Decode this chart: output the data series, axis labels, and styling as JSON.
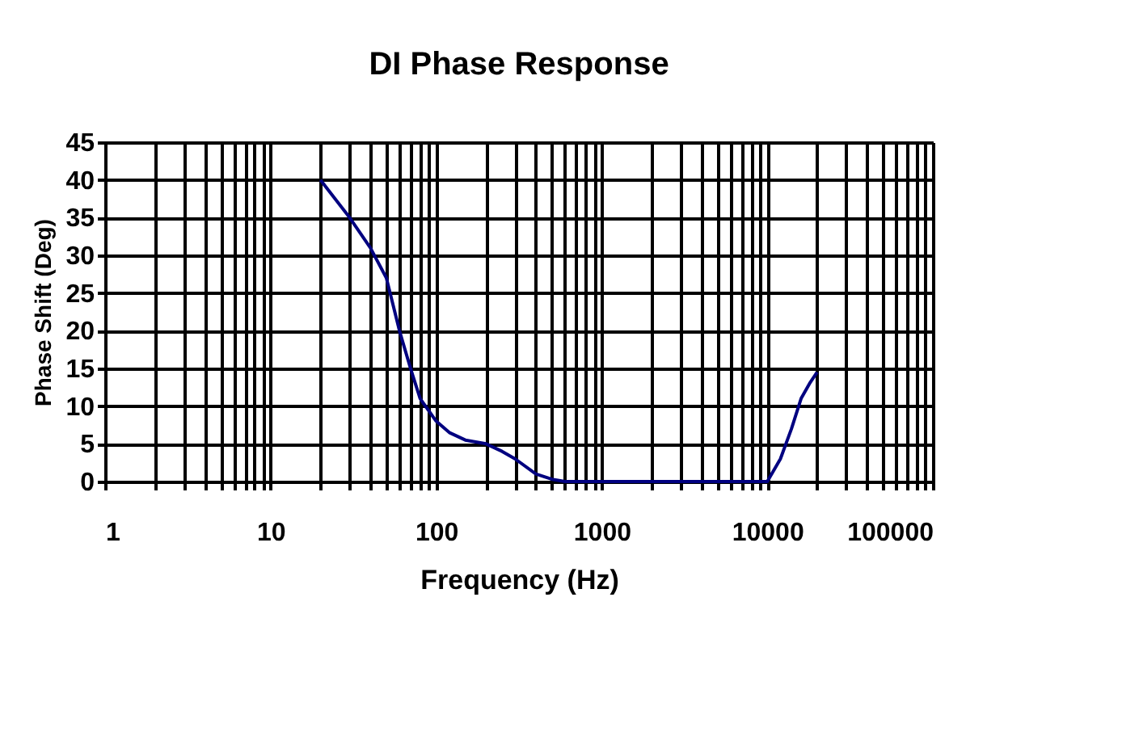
{
  "chart_data": {
    "type": "line",
    "title": "DI Phase Response",
    "xlabel": "Frequency (Hz)",
    "ylabel": "Phase Shift (Deg)",
    "log": "x",
    "grid": true,
    "marker": "none",
    "line_style": "solid",
    "x": [
      20,
      30,
      40,
      50,
      60,
      70,
      80,
      100,
      120,
      150,
      200,
      250,
      300,
      400,
      500,
      600,
      1000,
      10000,
      12000,
      14000,
      16000,
      18000,
      20000
    ],
    "series": [
      {
        "color": "#000080",
        "values": [
          40,
          35,
          31,
          27,
          20,
          15,
          11,
          8,
          6.5,
          5.5,
          5,
          4,
          3,
          1,
          0.3,
          0,
          0,
          0,
          3,
          7,
          11,
          13,
          14.5
        ]
      }
    ],
    "xlim": [
      1,
      100000
    ],
    "xticks": [
      1,
      {
        "value": 2,
        "label": null
      },
      {
        "value": 3,
        "label": null
      },
      {
        "value": 4,
        "label": null
      },
      {
        "value": 5,
        "label": null
      },
      {
        "value": 6,
        "label": null
      },
      {
        "value": 7,
        "label": null
      },
      {
        "value": 8,
        "label": null
      },
      {
        "value": 9,
        "label": null
      },
      10,
      {
        "value": 20,
        "label": null
      },
      {
        "value": 30,
        "label": null
      },
      {
        "value": 40,
        "label": null
      },
      {
        "value": 50,
        "label": null
      },
      {
        "value": 60,
        "label": null
      },
      {
        "value": 70,
        "label": null
      },
      {
        "value": 80,
        "label": null
      },
      {
        "value": 90,
        "label": null
      },
      100,
      {
        "value": 200,
        "label": null
      },
      {
        "value": 300,
        "label": null
      },
      {
        "value": 400,
        "label": null
      },
      {
        "value": 500,
        "label": null
      },
      {
        "value": 600,
        "label": null
      },
      {
        "value": 700,
        "label": null
      },
      {
        "value": 800,
        "label": null
      },
      {
        "value": 900,
        "label": null
      },
      1000,
      {
        "value": 2000,
        "label": null
      },
      {
        "value": 3000,
        "label": null
      },
      {
        "value": 4000,
        "label": null
      },
      {
        "value": 5000,
        "label": null
      },
      {
        "value": 6000,
        "label": null
      },
      {
        "value": 7000,
        "label": null
      },
      {
        "value": 8000,
        "label": null
      },
      {
        "value": 9000,
        "label": null
      },
      10000,
      {
        "value": 20000,
        "label": null
      },
      {
        "value": 30000,
        "label": null
      },
      {
        "value": 40000,
        "label": null
      },
      {
        "value": 50000,
        "label": null
      },
      {
        "value": 60000,
        "label": null
      },
      {
        "value": 70000,
        "label": null
      },
      {
        "value": 80000,
        "label": null
      },
      {
        "value": 90000,
        "label": null
      },
      100000
    ],
    "ylim": [
      0,
      45
    ],
    "yticks": [
      0,
      5,
      10,
      15,
      20,
      25,
      30,
      35,
      40,
      45
    ]
  }
}
